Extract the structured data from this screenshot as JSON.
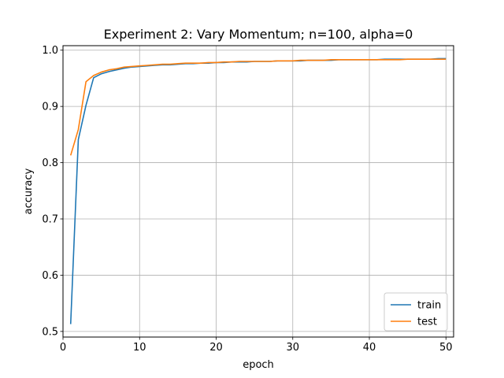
{
  "chart_data": {
    "type": "line",
    "title": "Experiment 2: Vary Momentum; n=100, alpha=0",
    "xlabel": "epoch",
    "ylabel": "accuracy",
    "xlim": [
      0,
      51
    ],
    "ylim": [
      0.49,
      1.008
    ],
    "xticks": [
      0,
      10,
      20,
      30,
      40,
      50
    ],
    "yticks": [
      0.5,
      0.6,
      0.7,
      0.8,
      0.9,
      1.0
    ],
    "ytick_labels": [
      "0.5",
      "0.6",
      "0.7",
      "0.8",
      "0.9",
      "1.0"
    ],
    "grid": true,
    "legend_position": "lower-right",
    "x": [
      1,
      2,
      3,
      4,
      5,
      6,
      7,
      8,
      9,
      10,
      11,
      12,
      13,
      14,
      15,
      16,
      17,
      18,
      19,
      20,
      21,
      22,
      23,
      24,
      25,
      26,
      27,
      28,
      29,
      30,
      31,
      32,
      33,
      34,
      35,
      36,
      37,
      38,
      39,
      40,
      41,
      42,
      43,
      44,
      45,
      46,
      47,
      48,
      49,
      50
    ],
    "series": [
      {
        "name": "train",
        "color": "#1f77b4",
        "values": [
          0.513,
          0.841,
          0.902,
          0.951,
          0.958,
          0.962,
          0.965,
          0.968,
          0.97,
          0.971,
          0.972,
          0.973,
          0.974,
          0.974,
          0.975,
          0.976,
          0.976,
          0.977,
          0.977,
          0.978,
          0.978,
          0.979,
          0.979,
          0.979,
          0.98,
          0.98,
          0.98,
          0.981,
          0.981,
          0.981,
          0.981,
          0.982,
          0.982,
          0.982,
          0.982,
          0.983,
          0.983,
          0.983,
          0.983,
          0.983,
          0.983,
          0.984,
          0.984,
          0.984,
          0.984,
          0.984,
          0.984,
          0.984,
          0.985,
          0.985
        ]
      },
      {
        "name": "test",
        "color": "#ff7f0e",
        "values": [
          0.813,
          0.859,
          0.944,
          0.955,
          0.961,
          0.965,
          0.967,
          0.97,
          0.971,
          0.972,
          0.973,
          0.974,
          0.975,
          0.975,
          0.976,
          0.977,
          0.977,
          0.977,
          0.978,
          0.978,
          0.979,
          0.979,
          0.98,
          0.98,
          0.98,
          0.98,
          0.98,
          0.981,
          0.981,
          0.981,
          0.982,
          0.982,
          0.982,
          0.982,
          0.983,
          0.983,
          0.983,
          0.983,
          0.983,
          0.983,
          0.983,
          0.983,
          0.983,
          0.983,
          0.984,
          0.984,
          0.984,
          0.984,
          0.984,
          0.984
        ]
      }
    ]
  }
}
